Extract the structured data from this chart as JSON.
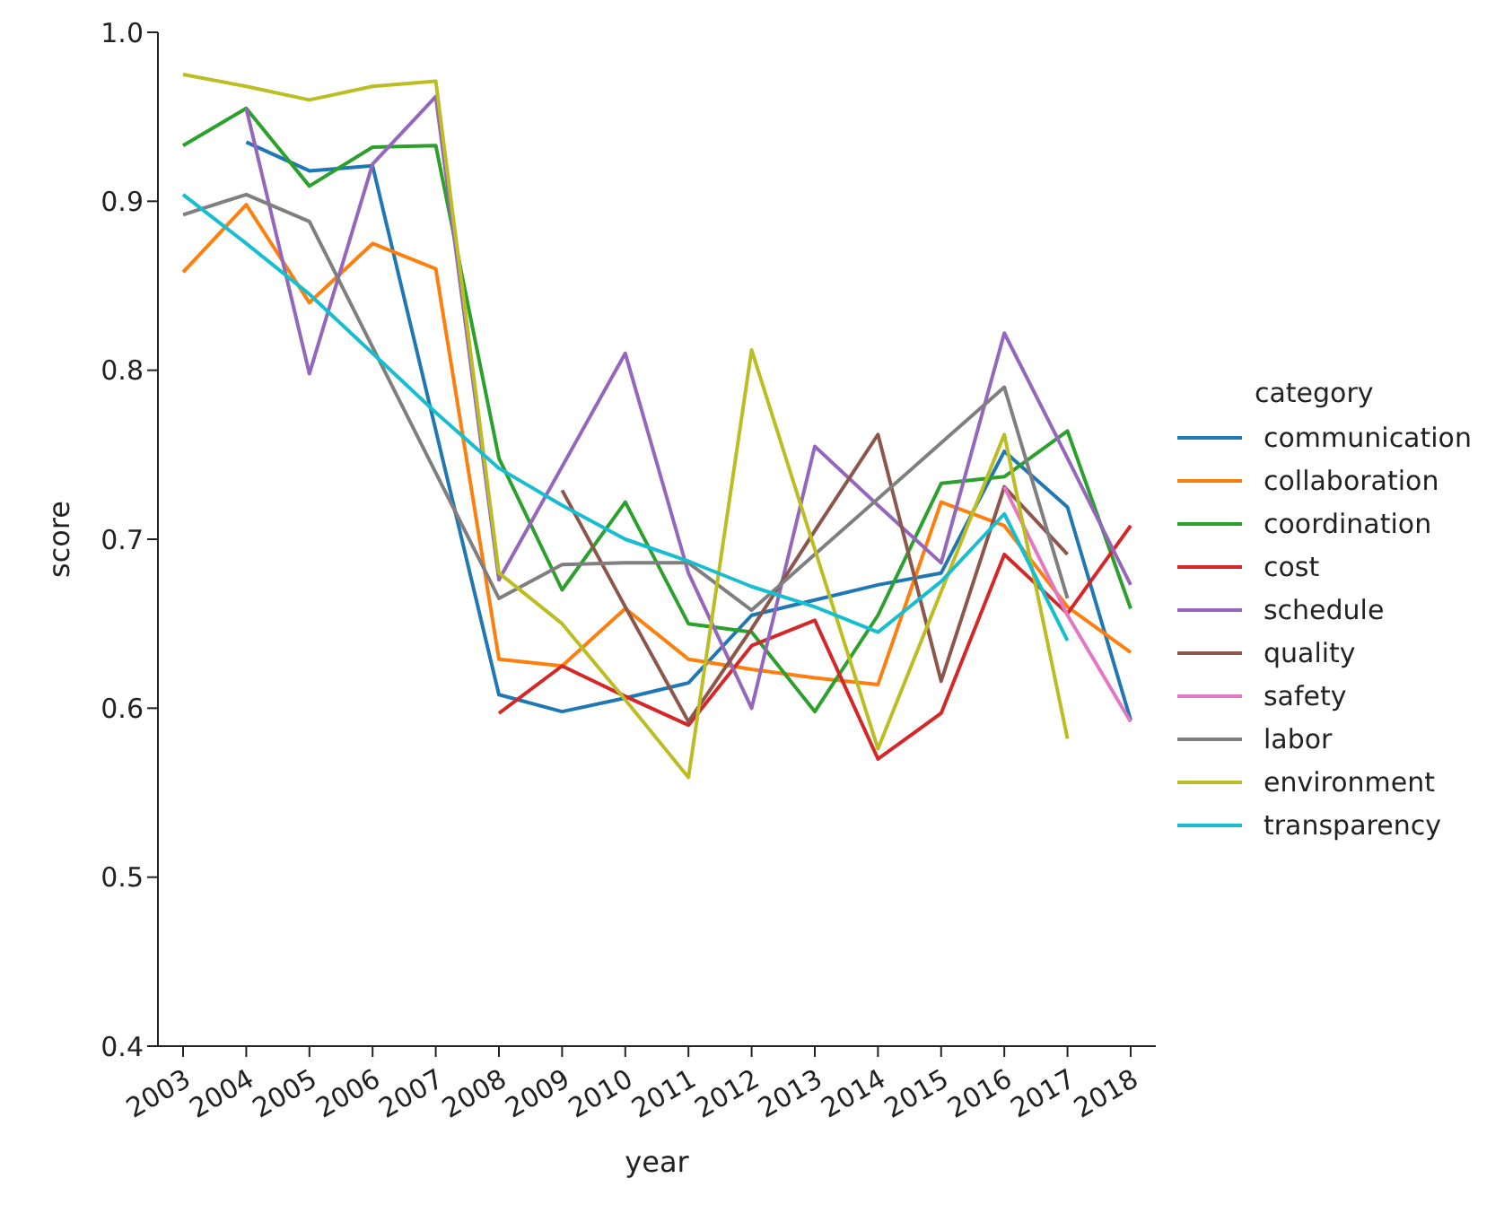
{
  "chart_data": {
    "type": "line",
    "xlabel": "year",
    "ylabel": "score",
    "legend_title": "category",
    "legend": "right",
    "grid": false,
    "marker": "none",
    "line_style": "solid",
    "categories": [
      "2003",
      "2004",
      "2005",
      "2006",
      "2007",
      "2008",
      "2009",
      "2010",
      "2011",
      "2012",
      "2013",
      "2014",
      "2015",
      "2016",
      "2017",
      "2018"
    ],
    "ylim": [
      0.4,
      1.0
    ],
    "yticks": [
      {
        "value": 0.4,
        "label": "0.4"
      },
      {
        "value": 0.5,
        "label": "0.5"
      },
      {
        "value": 0.6,
        "label": "0.6"
      },
      {
        "value": 0.7,
        "label": "0.7"
      },
      {
        "value": 0.8,
        "label": "0.8"
      },
      {
        "value": 0.9,
        "label": "0.9"
      },
      {
        "value": 1.0,
        "label": "1.0"
      }
    ],
    "series": [
      {
        "name": "communication",
        "color": "#1f77b4",
        "values": [
          null,
          0.935,
          0.918,
          0.921,
          null,
          0.608,
          0.598,
          0.606,
          0.615,
          0.655,
          0.664,
          0.673,
          0.68,
          0.752,
          0.719,
          0.593
        ]
      },
      {
        "name": "collaboration",
        "color": "#ff7f0e",
        "values": [
          0.858,
          0.898,
          0.84,
          0.875,
          0.86,
          0.629,
          0.625,
          0.659,
          0.629,
          0.623,
          0.618,
          0.614,
          0.722,
          0.708,
          0.66,
          0.633
        ]
      },
      {
        "name": "coordination",
        "color": "#2ca02c",
        "values": [
          0.933,
          0.955,
          0.909,
          0.932,
          0.933,
          0.748,
          0.67,
          0.722,
          0.65,
          0.645,
          0.598,
          0.655,
          0.733,
          0.737,
          0.764,
          0.659
        ]
      },
      {
        "name": "cost",
        "color": "#d62728",
        "values": [
          null,
          null,
          null,
          null,
          null,
          0.597,
          0.625,
          0.607,
          0.59,
          0.637,
          0.652,
          0.57,
          0.597,
          0.691,
          0.656,
          0.708
        ]
      },
      {
        "name": "schedule",
        "color": "#9467bd",
        "values": [
          null,
          0.955,
          0.798,
          0.922,
          0.962,
          0.676,
          0.743,
          0.81,
          0.68,
          0.6,
          0.755,
          0.72,
          0.686,
          0.822,
          0.748,
          0.673
        ]
      },
      {
        "name": "quality",
        "color": "#8c564b",
        "values": [
          null,
          null,
          null,
          null,
          null,
          null,
          0.729,
          0.66,
          0.592,
          0.647,
          0.705,
          0.762,
          0.616,
          0.731,
          0.691,
          null
        ]
      },
      {
        "name": "safety",
        "color": "#e377c2",
        "values": [
          null,
          null,
          null,
          null,
          null,
          null,
          null,
          null,
          null,
          null,
          null,
          null,
          null,
          0.731,
          0.655,
          0.592
        ]
      },
      {
        "name": "labor",
        "color": "#7f7f7f",
        "values": [
          0.892,
          0.904,
          0.888,
          null,
          null,
          0.665,
          0.685,
          0.686,
          0.686,
          0.658,
          null,
          null,
          null,
          0.79,
          0.665,
          null
        ]
      },
      {
        "name": "environment",
        "color": "#bcbd22",
        "values": [
          0.975,
          0.968,
          0.96,
          0.968,
          0.971,
          0.68,
          0.65,
          0.605,
          0.559,
          0.812,
          null,
          0.576,
          null,
          0.762,
          0.582,
          null
        ]
      },
      {
        "name": "transparency",
        "color": "#17becf",
        "values": [
          0.904,
          0.875,
          0.845,
          0.81,
          0.775,
          0.742,
          0.72,
          0.7,
          0.687,
          0.672,
          0.66,
          0.645,
          0.675,
          0.715,
          0.64,
          null
        ]
      }
    ]
  }
}
